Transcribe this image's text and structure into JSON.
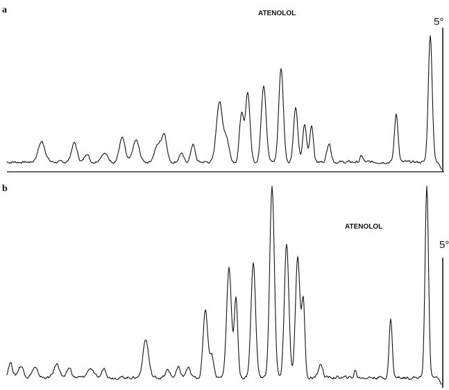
{
  "chart_data": [
    {
      "type": "line",
      "panel_label": "a",
      "annotation": "ATENOLOL",
      "scale_label": "5°",
      "baseline": 0,
      "noise": 0.02,
      "peaks": [
        {
          "x": 60,
          "h": 0.16,
          "w": 5
        },
        {
          "x": 107,
          "h": 0.15,
          "w": 4
        },
        {
          "x": 125,
          "h": 0.07,
          "w": 3
        },
        {
          "x": 150,
          "h": 0.07,
          "w": 5
        },
        {
          "x": 176,
          "h": 0.19,
          "w": 4
        },
        {
          "x": 196,
          "h": 0.17,
          "w": 4.5
        },
        {
          "x": 228,
          "h": 0.14,
          "w": 5
        },
        {
          "x": 237,
          "h": 0.2,
          "w": 3.5
        },
        {
          "x": 261,
          "h": 0.07,
          "w": 3
        },
        {
          "x": 278,
          "h": 0.14,
          "w": 3
        },
        {
          "x": 316,
          "h": 0.47,
          "w": 4.2
        },
        {
          "x": 326,
          "h": 0.19,
          "w": 4
        },
        {
          "x": 348,
          "h": 0.38,
          "w": 3
        },
        {
          "x": 357,
          "h": 0.55,
          "w": 3.2
        },
        {
          "x": 380,
          "h": 0.61,
          "w": 3.5
        },
        {
          "x": 405,
          "h": 0.74,
          "w": 3.3
        },
        {
          "x": 426,
          "h": 0.43,
          "w": 3
        },
        {
          "x": 439,
          "h": 0.29,
          "w": 2.8
        },
        {
          "x": 449,
          "h": 0.29,
          "w": 2.6
        },
        {
          "x": 474,
          "h": 0.15,
          "w": 3
        },
        {
          "x": 521,
          "h": 0.05,
          "w": 2
        },
        {
          "x": 571,
          "h": 0.38,
          "w": 2.6
        },
        {
          "x": 620,
          "h": 1.0,
          "w": 2.8
        }
      ]
    },
    {
      "type": "line",
      "panel_label": "b",
      "annotation": "ATENOLOL",
      "scale_label": "5°",
      "baseline": 0,
      "noise": 0.015,
      "peaks": [
        {
          "x": 15,
          "h": 0.08,
          "w": 3
        },
        {
          "x": 30,
          "h": 0.06,
          "w": 4
        },
        {
          "x": 50,
          "h": 0.05,
          "w": 4
        },
        {
          "x": 82,
          "h": 0.07,
          "w": 4
        },
        {
          "x": 100,
          "h": 0.05,
          "w": 3
        },
        {
          "x": 130,
          "h": 0.05,
          "w": 4
        },
        {
          "x": 150,
          "h": 0.05,
          "w": 3
        },
        {
          "x": 210,
          "h": 0.2,
          "w": 4
        },
        {
          "x": 242,
          "h": 0.04,
          "w": 3
        },
        {
          "x": 257,
          "h": 0.05,
          "w": 3
        },
        {
          "x": 271,
          "h": 0.05,
          "w": 3
        },
        {
          "x": 296,
          "h": 0.36,
          "w": 3.2
        },
        {
          "x": 305,
          "h": 0.12,
          "w": 3
        },
        {
          "x": 330,
          "h": 0.58,
          "w": 3.4
        },
        {
          "x": 340,
          "h": 0.42,
          "w": 2.5
        },
        {
          "x": 365,
          "h": 0.6,
          "w": 3.3
        },
        {
          "x": 392,
          "h": 1.0,
          "w": 3.3
        },
        {
          "x": 413,
          "h": 0.7,
          "w": 3.2
        },
        {
          "x": 429,
          "h": 0.64,
          "w": 3.2
        },
        {
          "x": 437,
          "h": 0.4,
          "w": 2.3
        },
        {
          "x": 462,
          "h": 0.07,
          "w": 3
        },
        {
          "x": 512,
          "h": 0.04,
          "w": 1.5
        },
        {
          "x": 563,
          "h": 0.31,
          "w": 2.2
        },
        {
          "x": 615,
          "h": 1.0,
          "w": 2.5
        }
      ]
    }
  ]
}
